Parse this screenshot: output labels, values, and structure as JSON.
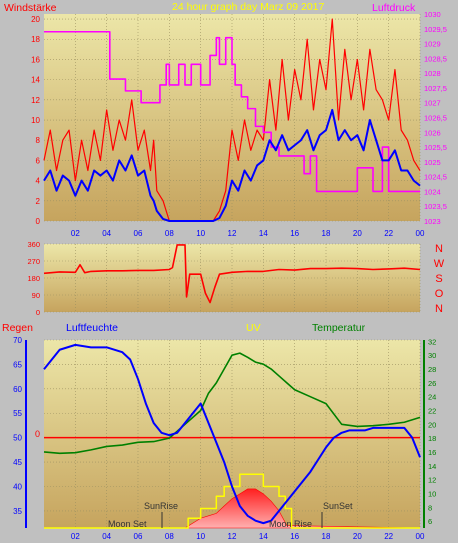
{
  "header": {
    "title": "24 hour graph day   Marz 09 2017",
    "left_label": "Windstärke",
    "right_label": "Luftdruck"
  },
  "colors": {
    "background": "#c0c0c0",
    "plot_top": "#e9e3a3",
    "plot_bottom": "#c9a864",
    "grid": "#9a8f60",
    "wind_gust": "#ff0000",
    "wind_avg": "#0000ff",
    "pressure": "#ff00ff",
    "direction": "#ff0000",
    "humidity": "#0000ff",
    "temperature": "#008000",
    "rain": "#ff0000",
    "uv": "#ffff00",
    "solar": "#ff4040"
  },
  "direction_labels": [
    "N",
    "W",
    "S",
    "O",
    "N"
  ],
  "bottom_header": {
    "rain": "Regen",
    "humidity": "Luftfeuchte",
    "uv": "UV",
    "temperature": "Temperatur"
  },
  "annotations": {
    "sunrise": "SunRise",
    "sunset": "SunSet",
    "moonset": "Moon Set",
    "moonrise": "Moon Rise",
    "rain_zero": "0"
  },
  "chart_data": [
    {
      "type": "line",
      "name": "wind-pressure",
      "x_ticks": [
        "02",
        "04",
        "06",
        "08",
        "10",
        "12",
        "14",
        "16",
        "18",
        "20",
        "22",
        "00"
      ],
      "y_left_ticks": [
        "0",
        "2",
        "4",
        "6",
        "8",
        "10",
        "12",
        "14",
        "16",
        "18",
        "20"
      ],
      "y_right_ticks": [
        "1023",
        "1023,5",
        "1024",
        "1024,5",
        "1025",
        "1025,5",
        "1026",
        "1026,5",
        "1027",
        "1027,5",
        "1028",
        "1028,5",
        "1029",
        "1029,5",
        "1030"
      ],
      "ylim_left": [
        0,
        20.5
      ],
      "ylim_right": [
        1023,
        1030
      ],
      "xlim": [
        0,
        24
      ],
      "series": [
        {
          "name": "gust",
          "x": [
            0,
            0.4,
            0.8,
            1.2,
            1.6,
            2,
            2.4,
            2.8,
            3.2,
            3.6,
            4,
            4.4,
            4.8,
            5.2,
            5.6,
            6,
            6.4,
            6.8,
            7,
            7.2,
            7.6,
            8,
            8.4,
            8.8,
            9.2,
            9.6,
            10,
            10.4,
            10.8,
            11.2,
            11.6,
            12,
            12.4,
            12.8,
            13.2,
            13.6,
            14,
            14.4,
            14.8,
            15.2,
            15.6,
            16,
            16.4,
            16.8,
            17.2,
            17.6,
            18,
            18.4,
            18.8,
            19.2,
            19.6,
            20,
            20.4,
            20.8,
            21.2,
            21.6,
            22,
            22.4,
            22.8,
            23.2,
            23.6,
            24
          ],
          "values": [
            6,
            9,
            5,
            8,
            9,
            4,
            8,
            5,
            9,
            6,
            11,
            7,
            10,
            8,
            12,
            7,
            9,
            5,
            8,
            3,
            2,
            0,
            0,
            0,
            0,
            0,
            0,
            0,
            0,
            1,
            3,
            9,
            6,
            10,
            7,
            9,
            8,
            14,
            9,
            16,
            10,
            15,
            12,
            18,
            11,
            16,
            13,
            20,
            10,
            17,
            12,
            16,
            11,
            17,
            13,
            12,
            10,
            15,
            9,
            8,
            6,
            5
          ]
        },
        {
          "name": "average",
          "x": [
            0,
            0.4,
            0.8,
            1.2,
            1.6,
            2,
            2.4,
            2.8,
            3.2,
            3.6,
            4,
            4.4,
            4.8,
            5.2,
            5.6,
            6,
            6.4,
            6.8,
            7,
            7.2,
            7.6,
            8,
            8.4,
            8.8,
            9.2,
            9.6,
            10,
            10.4,
            10.8,
            11.2,
            11.6,
            12,
            12.4,
            12.8,
            13.2,
            13.6,
            14,
            14.4,
            14.8,
            15.2,
            15.6,
            16,
            16.4,
            16.8,
            17.2,
            17.6,
            18,
            18.4,
            18.8,
            19.2,
            19.6,
            20,
            20.4,
            20.8,
            21.2,
            21.6,
            22,
            22.4,
            22.8,
            23.2,
            23.6,
            24
          ],
          "values": [
            4,
            5,
            3,
            4.5,
            4,
            2.5,
            4,
            3,
            5,
            4.5,
            5,
            4,
            6,
            5,
            6.5,
            4.5,
            5,
            2.5,
            2,
            1,
            0.2,
            0,
            0,
            0,
            0,
            0,
            0,
            0,
            0,
            0.3,
            1.5,
            4,
            3,
            5,
            4,
            5.5,
            6,
            8,
            7,
            8.5,
            7,
            7.5,
            8,
            9,
            7,
            8.5,
            9,
            11,
            8,
            9,
            8,
            8.5,
            7,
            10,
            8,
            6,
            6,
            7,
            5,
            5,
            4,
            3.5
          ]
        },
        {
          "name": "pressure",
          "x": [
            0,
            2,
            4,
            4.2,
            5,
            5.2,
            6,
            6.2,
            7,
            7.4,
            7.8,
            8,
            8.6,
            9,
            9.4,
            10,
            10.6,
            11,
            11.2,
            11.6,
            12,
            12.2,
            12.6,
            13,
            13.5,
            14,
            14.5,
            15,
            16,
            16.6,
            17,
            17.4,
            18,
            19,
            20,
            21,
            21.6,
            22,
            23,
            24
          ],
          "values": [
            1029.4,
            1029.4,
            1029.4,
            1027.8,
            1027.8,
            1027.4,
            1027.4,
            1027,
            1027,
            1027.6,
            1028.3,
            1027.6,
            1028.3,
            1027.6,
            1028.3,
            1027.6,
            1028.6,
            1029.2,
            1028.3,
            1029.2,
            1028.3,
            1027.6,
            1027.2,
            1026.8,
            1026.2,
            1026,
            1025.5,
            1025.2,
            1025.2,
            1024.6,
            1025.2,
            1024,
            1024,
            1024,
            1024.8,
            1024,
            1025.5,
            1024,
            1024,
            1024
          ]
        }
      ]
    },
    {
      "type": "line",
      "name": "wind-direction",
      "y_ticks": [
        "0",
        "90",
        "180",
        "270",
        "360"
      ],
      "ylim": [
        0,
        360
      ],
      "xlim": [
        0,
        24
      ],
      "series": [
        {
          "name": "direction",
          "x": [
            0,
            1,
            2,
            2.3,
            2.6,
            3,
            4,
            5,
            6,
            7,
            8,
            8.2,
            8.5,
            8.6,
            9,
            9.1,
            9.3,
            10,
            10.3,
            10.6,
            10.9,
            11.2,
            12,
            13,
            14,
            15,
            16,
            17,
            18,
            19,
            20,
            21,
            22,
            23,
            24
          ],
          "values": [
            205,
            212,
            210,
            250,
            208,
            215,
            218,
            218,
            220,
            220,
            225,
            235,
            355,
            355,
            355,
            80,
            200,
            200,
            100,
            50,
            130,
            200,
            210,
            215,
            215,
            225,
            222,
            230,
            230,
            232,
            230,
            225,
            228,
            232,
            225
          ]
        }
      ]
    },
    {
      "type": "line",
      "name": "humidity-temperature",
      "x_ticks": [
        "02",
        "04",
        "06",
        "08",
        "10",
        "12",
        "14",
        "16",
        "18",
        "20",
        "22",
        "00"
      ],
      "y_left_ticks": [
        "35",
        "40",
        "45",
        "50",
        "55",
        "60",
        "65",
        "70"
      ],
      "y_right_ticks": [
        "6",
        "8",
        "10",
        "12",
        "14",
        "16",
        "18",
        "20",
        "22",
        "24",
        "26",
        "28",
        "30",
        "32"
      ],
      "ylim_left": [
        31.5,
        70
      ],
      "ylim_right": [
        5,
        32.2
      ],
      "xlim": [
        0,
        24
      ],
      "series": [
        {
          "name": "humidity",
          "x": [
            0,
            0.5,
            1,
            2,
            3,
            4,
            5,
            5.5,
            6,
            6.5,
            7,
            7.5,
            8,
            8.5,
            9,
            9.5,
            10,
            10.5,
            11,
            11.5,
            12,
            12.5,
            13,
            13.5,
            14,
            14.5,
            15,
            15.5,
            16,
            16.5,
            17,
            17.5,
            18,
            18.5,
            19,
            19.5,
            20,
            20.5,
            21,
            22,
            23,
            23.5,
            24
          ],
          "values": [
            64,
            66,
            68,
            69,
            68.5,
            68.5,
            67.5,
            66,
            62,
            57,
            53,
            51,
            50.5,
            51,
            53,
            55,
            57,
            53,
            49,
            45,
            40,
            36,
            34,
            33,
            32.5,
            33,
            35,
            37,
            39,
            41,
            43,
            45.5,
            48,
            50,
            51,
            51.5,
            51.5,
            51.5,
            52,
            52,
            52,
            50,
            46
          ]
        },
        {
          "name": "temperature",
          "x": [
            0,
            1,
            2,
            3,
            4,
            5,
            6,
            7,
            8,
            9,
            10,
            10.5,
            11,
            11.5,
            12,
            12.5,
            13,
            13.5,
            14,
            14.5,
            15,
            15.5,
            16,
            17,
            18,
            19,
            20,
            21,
            22,
            23,
            24
          ],
          "values": [
            16,
            15.8,
            15.9,
            16.3,
            16.8,
            17,
            17.4,
            17.5,
            18,
            20,
            22,
            24.5,
            26,
            28,
            30,
            30.3,
            29.7,
            29,
            28.7,
            28,
            27,
            26,
            25,
            24,
            23,
            20,
            19.7,
            19.8,
            20,
            20.3,
            21
          ]
        },
        {
          "name": "uv",
          "x": [
            0,
            8.8,
            9.2,
            10,
            10.6,
            11,
            11.5,
            12,
            12.5,
            13,
            13.5,
            14,
            14.5,
            15,
            15.4,
            15.8,
            24
          ],
          "values": [
            31.5,
            31.5,
            33.5,
            35.5,
            35.5,
            38,
            40,
            40,
            42.5,
            42.5,
            42.5,
            40,
            40,
            38,
            35.5,
            31.5,
            31.5
          ]
        },
        {
          "name": "solar",
          "x": [
            0,
            9,
            9.5,
            10,
            10.5,
            11,
            11.5,
            12,
            12.5,
            13,
            13.5,
            14,
            14.5,
            15,
            15.5,
            24
          ],
          "values": [
            31.5,
            31.5,
            32.5,
            33.5,
            34,
            34.5,
            36,
            37.5,
            38.5,
            39.5,
            39.5,
            38.5,
            37,
            35,
            32,
            31.5
          ]
        }
      ]
    }
  ]
}
